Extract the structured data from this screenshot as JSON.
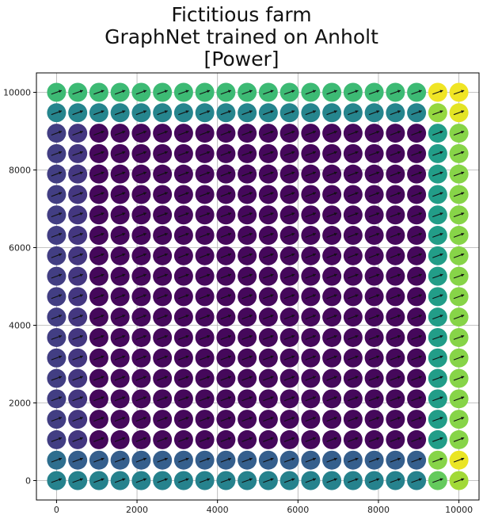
{
  "chart_data": {
    "type": "scatter",
    "title_lines": [
      "Fictitious farm",
      "GraphNet trained on Anholt",
      "[Power]"
    ],
    "xlabel": "",
    "ylabel": "",
    "xlim": [
      -500,
      10500
    ],
    "ylim": [
      -500,
      10500
    ],
    "xticks": [
      0,
      2000,
      4000,
      6000,
      8000,
      10000
    ],
    "yticks": [
      0,
      2000,
      4000,
      6000,
      8000,
      10000
    ],
    "grid": true,
    "colormap": "viridis",
    "marker": "circle with wind-direction arrow",
    "columns_x": [
      0,
      526.3,
      1052.6,
      1578.9,
      2105.3,
      2631.6,
      3157.9,
      3684.2,
      4210.5,
      4736.8,
      5263.2,
      5789.5,
      6315.8,
      6842.1,
      7368.4,
      7894.7,
      8421.1,
      8947.4,
      9473.7,
      10000
    ],
    "rows_y": [
      10000,
      9473.7,
      8947.4,
      8421.1,
      7894.7,
      7368.4,
      6842.1,
      6315.8,
      5789.5,
      5263.2,
      4736.8,
      4210.5,
      3684.2,
      3157.9,
      2631.6,
      2105.3,
      1578.9,
      1052.6,
      526.3,
      0
    ],
    "power_normalized": [
      [
        0.68,
        0.68,
        0.68,
        0.68,
        0.68,
        0.68,
        0.68,
        0.68,
        0.68,
        0.68,
        0.68,
        0.68,
        0.68,
        0.68,
        0.68,
        0.68,
        0.68,
        0.68,
        0.98,
        0.98
      ],
      [
        0.45,
        0.45,
        0.45,
        0.45,
        0.45,
        0.45,
        0.45,
        0.45,
        0.45,
        0.45,
        0.45,
        0.45,
        0.45,
        0.45,
        0.45,
        0.45,
        0.45,
        0.45,
        0.84,
        0.96
      ],
      [
        0.18,
        0.16,
        0.02,
        0.02,
        0.02,
        0.02,
        0.02,
        0.02,
        0.02,
        0.02,
        0.02,
        0.02,
        0.02,
        0.02,
        0.02,
        0.02,
        0.02,
        0.02,
        0.55,
        0.82
      ],
      [
        0.18,
        0.16,
        0.02,
        0.02,
        0.02,
        0.02,
        0.02,
        0.02,
        0.02,
        0.02,
        0.02,
        0.02,
        0.02,
        0.02,
        0.02,
        0.02,
        0.02,
        0.02,
        0.55,
        0.82
      ],
      [
        0.18,
        0.16,
        0.02,
        0.02,
        0.02,
        0.02,
        0.02,
        0.02,
        0.02,
        0.02,
        0.02,
        0.02,
        0.02,
        0.02,
        0.02,
        0.02,
        0.02,
        0.02,
        0.55,
        0.82
      ],
      [
        0.18,
        0.16,
        0.02,
        0.02,
        0.02,
        0.02,
        0.02,
        0.02,
        0.02,
        0.02,
        0.02,
        0.02,
        0.02,
        0.02,
        0.02,
        0.02,
        0.02,
        0.02,
        0.55,
        0.82
      ],
      [
        0.18,
        0.16,
        0.02,
        0.02,
        0.02,
        0.02,
        0.02,
        0.02,
        0.02,
        0.02,
        0.02,
        0.02,
        0.02,
        0.02,
        0.02,
        0.02,
        0.02,
        0.02,
        0.55,
        0.82
      ],
      [
        0.18,
        0.16,
        0.02,
        0.02,
        0.02,
        0.02,
        0.02,
        0.02,
        0.02,
        0.02,
        0.02,
        0.02,
        0.02,
        0.02,
        0.02,
        0.02,
        0.02,
        0.02,
        0.55,
        0.82
      ],
      [
        0.18,
        0.16,
        0.02,
        0.02,
        0.02,
        0.02,
        0.02,
        0.02,
        0.02,
        0.02,
        0.02,
        0.02,
        0.02,
        0.02,
        0.02,
        0.02,
        0.02,
        0.02,
        0.55,
        0.82
      ],
      [
        0.18,
        0.16,
        0.02,
        0.02,
        0.02,
        0.02,
        0.02,
        0.02,
        0.02,
        0.02,
        0.02,
        0.02,
        0.02,
        0.02,
        0.02,
        0.02,
        0.02,
        0.02,
        0.55,
        0.82
      ],
      [
        0.18,
        0.16,
        0.02,
        0.02,
        0.02,
        0.02,
        0.02,
        0.02,
        0.02,
        0.02,
        0.02,
        0.02,
        0.02,
        0.02,
        0.02,
        0.02,
        0.02,
        0.02,
        0.55,
        0.82
      ],
      [
        0.18,
        0.16,
        0.02,
        0.02,
        0.02,
        0.02,
        0.02,
        0.02,
        0.02,
        0.02,
        0.02,
        0.02,
        0.02,
        0.02,
        0.02,
        0.02,
        0.02,
        0.02,
        0.55,
        0.82
      ],
      [
        0.18,
        0.16,
        0.02,
        0.02,
        0.02,
        0.02,
        0.02,
        0.02,
        0.02,
        0.02,
        0.02,
        0.02,
        0.02,
        0.02,
        0.02,
        0.02,
        0.02,
        0.02,
        0.55,
        0.82
      ],
      [
        0.18,
        0.16,
        0.02,
        0.02,
        0.02,
        0.02,
        0.02,
        0.02,
        0.02,
        0.02,
        0.02,
        0.02,
        0.02,
        0.02,
        0.02,
        0.02,
        0.02,
        0.02,
        0.55,
        0.82
      ],
      [
        0.18,
        0.16,
        0.02,
        0.02,
        0.02,
        0.02,
        0.02,
        0.02,
        0.02,
        0.02,
        0.02,
        0.02,
        0.02,
        0.02,
        0.02,
        0.02,
        0.02,
        0.02,
        0.55,
        0.82
      ],
      [
        0.18,
        0.16,
        0.02,
        0.02,
        0.02,
        0.02,
        0.02,
        0.02,
        0.02,
        0.02,
        0.02,
        0.02,
        0.02,
        0.02,
        0.02,
        0.02,
        0.02,
        0.02,
        0.55,
        0.82
      ],
      [
        0.18,
        0.16,
        0.02,
        0.02,
        0.02,
        0.02,
        0.02,
        0.02,
        0.02,
        0.02,
        0.02,
        0.02,
        0.02,
        0.02,
        0.02,
        0.02,
        0.02,
        0.02,
        0.55,
        0.82
      ],
      [
        0.18,
        0.16,
        0.02,
        0.02,
        0.02,
        0.02,
        0.02,
        0.02,
        0.02,
        0.02,
        0.02,
        0.02,
        0.02,
        0.02,
        0.02,
        0.02,
        0.02,
        0.02,
        0.55,
        0.82
      ],
      [
        0.36,
        0.3,
        0.3,
        0.3,
        0.3,
        0.3,
        0.3,
        0.3,
        0.3,
        0.3,
        0.3,
        0.3,
        0.3,
        0.3,
        0.3,
        0.3,
        0.3,
        0.3,
        0.82,
        0.97
      ],
      [
        0.44,
        0.44,
        0.44,
        0.44,
        0.44,
        0.44,
        0.44,
        0.44,
        0.44,
        0.44,
        0.44,
        0.44,
        0.44,
        0.44,
        0.44,
        0.44,
        0.44,
        0.44,
        0.76,
        0.86
      ]
    ],
    "arrow_direction_deg": 20
  }
}
